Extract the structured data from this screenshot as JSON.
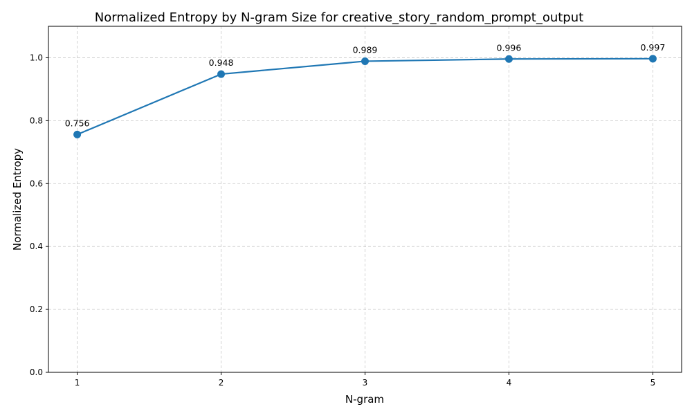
{
  "chart_data": {
    "type": "line",
    "title": "Normalized Entropy by N-gram Size for creative_story_random_prompt_output",
    "xlabel": "N-gram",
    "ylabel": "Normalized Entropy",
    "x": [
      1,
      2,
      3,
      4,
      5
    ],
    "x_tick_labels": [
      "1",
      "2",
      "3",
      "4",
      "5"
    ],
    "y_ticks": [
      0.0,
      0.2,
      0.4,
      0.6,
      0.8,
      1.0
    ],
    "y_tick_labels": [
      "0.0",
      "0.2",
      "0.4",
      "0.6",
      "0.8",
      "1.0"
    ],
    "xlim": [
      0.8,
      5.2
    ],
    "ylim": [
      0,
      1.1
    ],
    "grid": true,
    "series": [
      {
        "name": "Normalized Entropy",
        "color": "#1f77b4",
        "values": [
          0.756,
          0.948,
          0.989,
          0.996,
          0.997
        ],
        "data_labels": [
          "0.756",
          "0.948",
          "0.989",
          "0.996",
          "0.997"
        ]
      }
    ]
  }
}
